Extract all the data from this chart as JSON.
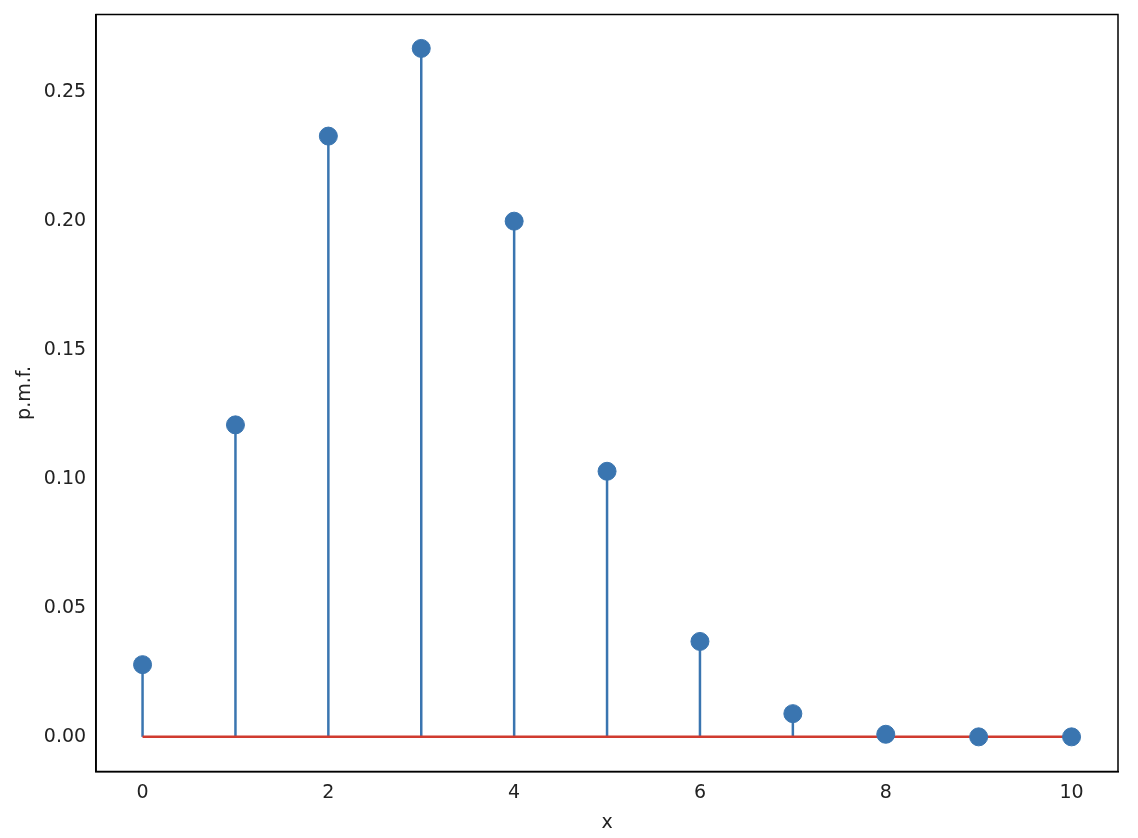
{
  "chart_data": {
    "type": "lollipop",
    "xlabel": "x",
    "ylabel": "p.m.f.",
    "x": [
      0,
      1,
      2,
      3,
      4,
      5,
      6,
      7,
      8,
      9,
      10
    ],
    "values": [
      0.028,
      0.121,
      0.233,
      0.267,
      0.2,
      0.103,
      0.037,
      0.009,
      0.001,
      0.0,
      0.0
    ],
    "color": "#3a75b0",
    "marker": "circle",
    "xlim": [
      -0.5,
      10.5
    ],
    "ylim": [
      -0.0134,
      0.2802
    ],
    "xticks": [
      0,
      2,
      4,
      6,
      8,
      10
    ],
    "yticks": [
      {
        "value": 0,
        "label": "0.00"
      },
      {
        "value": 0.05,
        "label": "0.05"
      },
      {
        "value": 0.1,
        "label": "0.10"
      },
      {
        "value": 0.15,
        "label": "0.15"
      },
      {
        "value": 0.2,
        "label": "0.20"
      },
      {
        "value": 0.25,
        "label": "0.25"
      }
    ],
    "ref_lines": [
      {
        "axis": "y",
        "value": 0,
        "color": "#d03b2f"
      }
    ]
  }
}
